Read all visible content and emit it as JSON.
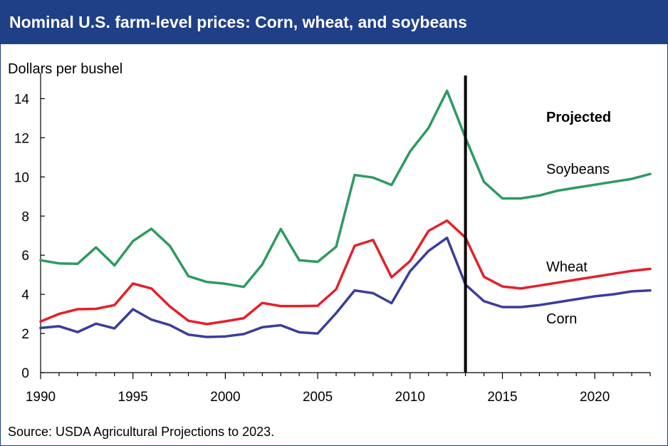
{
  "chart_data": {
    "type": "line",
    "title": "Nominal U.S. farm-level prices: Corn, wheat, and soybeans",
    "ylabel": "Dollars per bushel",
    "xlabel": "",
    "x": [
      1990,
      1991,
      1992,
      1993,
      1994,
      1995,
      1996,
      1997,
      1998,
      1999,
      2000,
      2001,
      2002,
      2003,
      2004,
      2005,
      2006,
      2007,
      2008,
      2009,
      2010,
      2011,
      2012,
      2013,
      2014,
      2015,
      2016,
      2017,
      2018,
      2019,
      2020,
      2021,
      2022,
      2023
    ],
    "xlim": [
      1990,
      2023
    ],
    "ylim": [
      0,
      15
    ],
    "x_ticks": [
      "1990",
      "1995",
      "2000",
      "2005",
      "2010",
      "2015",
      "2020"
    ],
    "y_ticks": [
      "0",
      "2",
      "4",
      "6",
      "8",
      "10",
      "12",
      "14"
    ],
    "grid": false,
    "legend": "none (series labeled directly on chart)",
    "projection_line_x": 2013,
    "projection_label": "Projected",
    "series": [
      {
        "name": "Soybeans",
        "color": "#2e9a62",
        "values": [
          5.74,
          5.58,
          5.56,
          6.4,
          5.48,
          6.72,
          7.35,
          6.47,
          4.93,
          4.63,
          4.54,
          4.38,
          5.53,
          7.34,
          5.74,
          5.66,
          6.43,
          10.1,
          9.97,
          9.59,
          11.3,
          12.5,
          14.4,
          12.0,
          9.75,
          8.9,
          8.9,
          9.05,
          9.3,
          9.45,
          9.6,
          9.75,
          9.9,
          10.15
        ]
      },
      {
        "name": "Wheat",
        "color": "#e3202a",
        "values": [
          2.61,
          3.0,
          3.24,
          3.26,
          3.45,
          4.55,
          4.3,
          3.38,
          2.65,
          2.48,
          2.62,
          2.78,
          3.56,
          3.4,
          3.4,
          3.42,
          4.26,
          6.48,
          6.78,
          4.87,
          5.7,
          7.24,
          7.77,
          6.9,
          4.9,
          4.4,
          4.3,
          4.45,
          4.6,
          4.75,
          4.9,
          5.05,
          5.2,
          5.3
        ]
      },
      {
        "name": "Corn",
        "color": "#3c3d98",
        "values": [
          2.28,
          2.37,
          2.07,
          2.5,
          2.26,
          3.24,
          2.71,
          2.43,
          1.94,
          1.82,
          1.85,
          1.97,
          2.32,
          2.42,
          2.06,
          2.0,
          3.04,
          4.2,
          4.06,
          3.55,
          5.18,
          6.22,
          6.89,
          4.5,
          3.65,
          3.35,
          3.35,
          3.45,
          3.6,
          3.75,
          3.9,
          4.0,
          4.15,
          4.2
        ]
      }
    ],
    "series_labels": [
      "Soybeans",
      "Wheat",
      "Corn"
    ]
  },
  "footer": {
    "source": "Source: USDA Agricultural Projections to 2023."
  }
}
